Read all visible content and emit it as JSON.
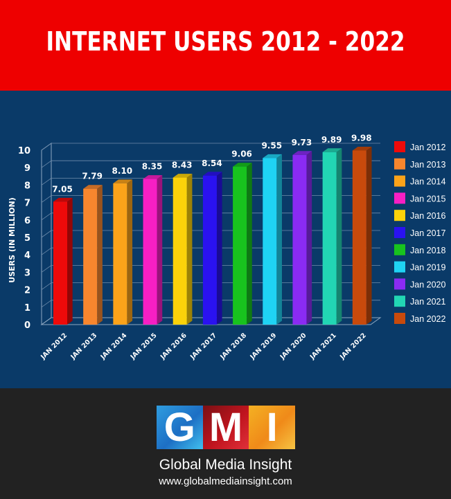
{
  "header": {
    "title": "INTERNET USERS 2012 - 2022"
  },
  "chart_data": {
    "type": "bar",
    "title": "INTERNET USERS 2012 - 2022",
    "ylabel": "USERS (IN MILLION)",
    "xlabel": "",
    "ylim": [
      0,
      10
    ],
    "yticks": [
      "0",
      "1",
      "2",
      "3",
      "4",
      "5",
      "6",
      "7",
      "8",
      "9",
      "10"
    ],
    "categories": [
      "JAN 2012",
      "JAN 2013",
      "JAN 2014",
      "JAN 2015",
      "JAN 2016",
      "JAN 2017",
      "JAN 2018",
      "JAN 2019",
      "JAN 2020",
      "JAN 2021",
      "JAN 2022"
    ],
    "values": [
      7.05,
      7.79,
      8.1,
      8.35,
      8.43,
      8.54,
      9.06,
      9.55,
      9.73,
      9.89,
      9.98
    ],
    "value_labels": [
      "7.05",
      "7.79",
      "8.10",
      "8.35",
      "8.43",
      "8.54",
      "9.06",
      "9.55",
      "9.73",
      "9.89",
      "9.98"
    ],
    "colors": [
      "#ee0a0a",
      "#f7862e",
      "#fba31a",
      "#f71fc4",
      "#fbd20a",
      "#2a12f0",
      "#18c31e",
      "#1fd3f4",
      "#8a2bf3",
      "#22d6b4",
      "#c84a0c"
    ],
    "legend": [
      "Jan 2012",
      "Jan 2013",
      "Jan 2014",
      "Jan 2015",
      "Jan 2016",
      "Jan 2017",
      "Jan 2018",
      "Jan 2019",
      "Jan 2020",
      "Jan 2021",
      "Jan 2022"
    ],
    "legend_position": "right",
    "grid": true
  },
  "footer": {
    "logo_letters": [
      "G",
      "M",
      "I"
    ],
    "brand": "Global Media Insight",
    "url": "www.globalmediainsight.com"
  }
}
